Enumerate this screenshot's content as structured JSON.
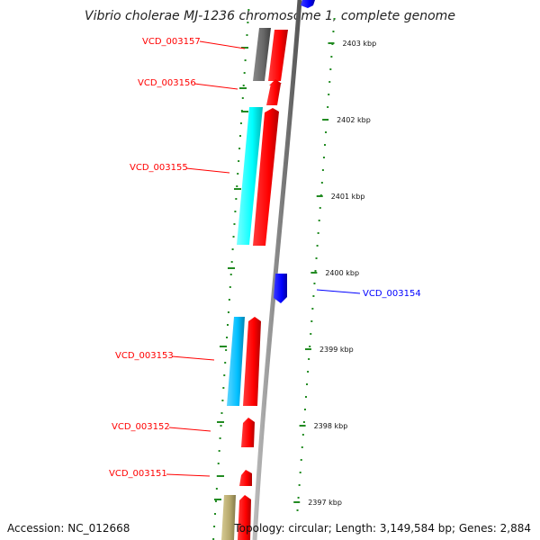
{
  "title": "Vibrio cholerae MJ-1236 chromosome 1, complete genome",
  "footer": {
    "accession": "Accession: NC_012668",
    "summary": "Topology: circular; Length: 3,149,584 bp; Genes: 2,884"
  },
  "scale": [
    {
      "label": "2403 kbp"
    },
    {
      "label": "2402 kbp"
    },
    {
      "label": "2401 kbp"
    },
    {
      "label": "2400 kbp"
    },
    {
      "label": "2399 kbp"
    },
    {
      "label": "2398 kbp"
    },
    {
      "label": "2397 kbp"
    }
  ],
  "genes": [
    {
      "id": "VCD_003157",
      "strand": "minus",
      "color": "#ff0000",
      "track_color": "#666666"
    },
    {
      "id": "VCD_003156",
      "strand": "minus",
      "color": "#ff0000"
    },
    {
      "id": "VCD_003155",
      "strand": "minus",
      "color": "#ff0000",
      "track_color": "#00ffff"
    },
    {
      "id": "VCD_003154",
      "strand": "plus",
      "color": "#0000ff"
    },
    {
      "id": "VCD_003153",
      "strand": "minus",
      "color": "#ff0000",
      "track_color": "#00bfff"
    },
    {
      "id": "VCD_003152",
      "strand": "minus",
      "color": "#ff0000"
    },
    {
      "id": "VCD_003151",
      "strand": "minus",
      "color": "#ff0000"
    }
  ],
  "colors": {
    "backbone": "#888888",
    "minus_strand": "#ff0000",
    "plus_strand": "#0000ff",
    "tick": "#228b22",
    "bottom_track": "#b5a76a"
  }
}
